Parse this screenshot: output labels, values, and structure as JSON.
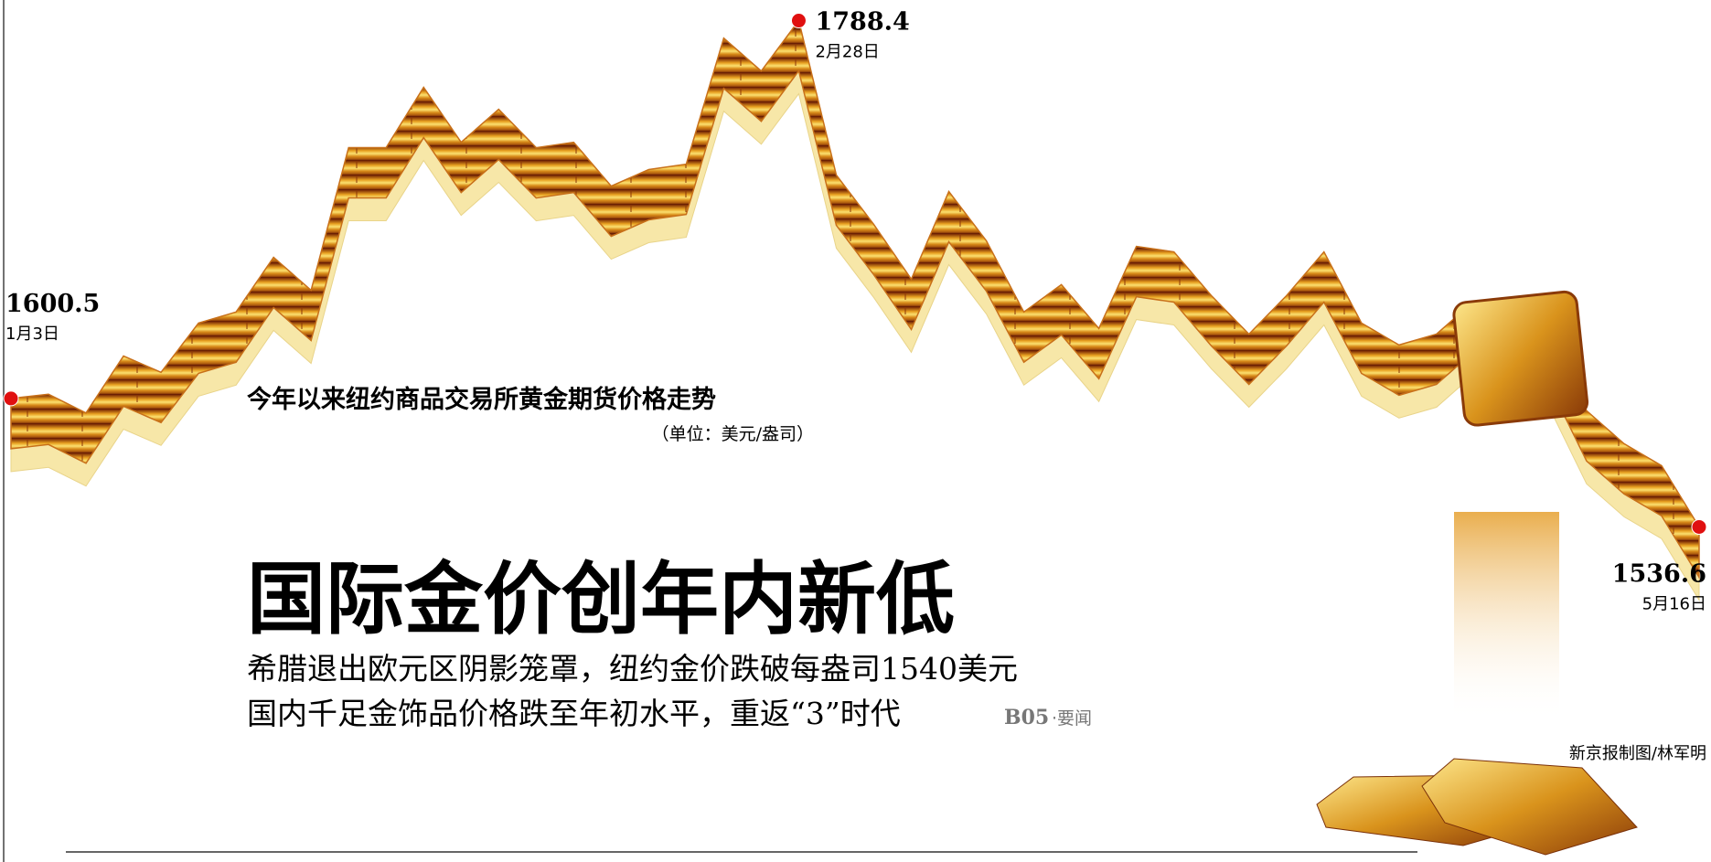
{
  "chart_data": {
    "type": "line",
    "title": "今年以来纽约商品交易所黄金期货价格走势",
    "subtitle": "（单位：美元/盎司）",
    "categories": [
      "1月3日",
      null,
      null,
      null,
      null,
      null,
      null,
      null,
      null,
      null,
      null,
      null,
      null,
      null,
      null,
      null,
      null,
      null,
      null,
      null,
      null,
      "2月28日",
      null,
      null,
      null,
      null,
      null,
      null,
      null,
      null,
      null,
      null,
      null,
      null,
      null,
      null,
      null,
      null,
      null,
      null,
      null,
      null,
      null,
      null,
      null,
      "5月16日"
    ],
    "values": [
      1600.5,
      1602.6,
      1593.3,
      1621.6,
      1613.5,
      1638.0,
      1643.5,
      1670.7,
      1654.3,
      1725.2,
      1725.2,
      1755.2,
      1727.9,
      1744.3,
      1725.2,
      1727.9,
      1706.1,
      1714.3,
      1717.0,
      1779.7,
      1763.3,
      1788.4,
      1711.6,
      1687.0,
      1659.8,
      1703.4,
      1678.9,
      1643.5,
      1657.1,
      1635.3,
      1676.1,
      1673.4,
      1651.6,
      1632.5,
      1651.6,
      1673.4,
      1638.0,
      1627.1,
      1632.5,
      1648.9,
      1635.3,
      1632.5,
      1594.4,
      1578.0,
      1567.1,
      1536.6
    ],
    "color": "#c8701a",
    "ylim": [
      1530,
      1795
    ]
  },
  "headline": {
    "title": "国际金价创年内新低",
    "lines": [
      "希腊退出欧元区阴影笼罩，纽约金价跌破每盎司1540美元",
      "国内千足金饰品价格跌至年初水平，重返“3”时代"
    ],
    "page_ref": "B05",
    "section": "·要闻"
  },
  "credit": "新京报制图/林军明"
}
